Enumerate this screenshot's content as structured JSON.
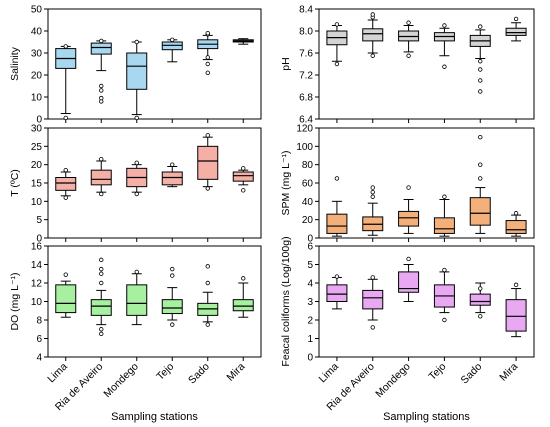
{
  "x_axis": {
    "categories": [
      "Lima",
      "Ria de Aveiro",
      "Mondego",
      "Tejo",
      "Sado",
      "Mira"
    ],
    "title": "Sampling stations"
  },
  "chart_data": [
    {
      "type": "box",
      "ylabel": "Salinity",
      "ylim": [
        0,
        50
      ],
      "yticks": [
        0,
        10,
        20,
        30,
        40,
        50
      ],
      "ytick_labels": [
        "0",
        "10",
        "20",
        "30",
        "40",
        "50"
      ],
      "color": "#a8d8f0",
      "categories": [
        "Lima",
        "Ria de Aveiro",
        "Mondego",
        "Tejo",
        "Sado",
        "Mira"
      ],
      "boxes": [
        {
          "min": 2.5,
          "q1": 23,
          "median": 27.5,
          "q3": 32,
          "max": 33,
          "outliers": [
            0.5,
            33
          ]
        },
        {
          "min": 22,
          "q1": 29.5,
          "median": 32.5,
          "q3": 34.5,
          "max": 35.5,
          "outliers": [
            8,
            9.5,
            13,
            15,
            35.5
          ]
        },
        {
          "min": 2,
          "q1": 13.5,
          "median": 24,
          "q3": 30,
          "max": 35,
          "outliers": [
            0.5,
            35
          ]
        },
        {
          "min": 26,
          "q1": 31.5,
          "median": 33.5,
          "q3": 35,
          "max": 36,
          "outliers": [
            36
          ]
        },
        {
          "min": 27,
          "q1": 32,
          "median": 34,
          "q3": 36,
          "max": 38,
          "outliers": [
            21,
            25,
            28,
            38.5,
            39
          ]
        },
        {
          "min": 34,
          "q1": 35,
          "median": 35.5,
          "q3": 36,
          "max": 36.5,
          "outliers": []
        }
      ]
    },
    {
      "type": "box",
      "ylabel": "pH",
      "ylim": [
        6.4,
        8.4
      ],
      "yticks": [
        6.4,
        6.8,
        7.2,
        7.6,
        8.0,
        8.4
      ],
      "ytick_labels": [
        "6.4",
        "6.8",
        "7.2",
        "7.6",
        "8.0",
        "8.4"
      ],
      "color": "#d4d4d4",
      "categories": [
        "Lima",
        "Ria de Aveiro",
        "Mondego",
        "Tejo",
        "Sado",
        "Mira"
      ],
      "boxes": [
        {
          "min": 7.45,
          "q1": 7.75,
          "median": 7.88,
          "q3": 8.0,
          "max": 8.1,
          "outliers": [
            7.4,
            8.12
          ]
        },
        {
          "min": 7.6,
          "q1": 7.82,
          "median": 7.95,
          "q3": 8.04,
          "max": 8.2,
          "outliers": [
            7.55,
            8.25,
            8.3
          ]
        },
        {
          "min": 7.62,
          "q1": 7.82,
          "median": 7.9,
          "q3": 8.0,
          "max": 8.1,
          "outliers": [
            7.55,
            8.15
          ]
        },
        {
          "min": 7.55,
          "q1": 7.82,
          "median": 7.9,
          "q3": 7.97,
          "max": 8.05,
          "outliers": [
            7.35,
            8.1
          ]
        },
        {
          "min": 7.5,
          "q1": 7.72,
          "median": 7.82,
          "q3": 7.92,
          "max": 8.02,
          "outliers": [
            6.9,
            7.1,
            7.3,
            7.45,
            8.08
          ]
        },
        {
          "min": 7.82,
          "q1": 7.92,
          "median": 7.97,
          "q3": 8.05,
          "max": 8.15,
          "outliers": [
            8.22
          ]
        }
      ]
    },
    {
      "type": "box",
      "ylabel": "T (ºC)",
      "ylim": [
        0,
        30
      ],
      "yticks": [
        0,
        5,
        10,
        15,
        20,
        25,
        30
      ],
      "ytick_labels": [
        "0",
        "5",
        "10",
        "15",
        "20",
        "25",
        "30"
      ],
      "color": "#f4b0a6",
      "categories": [
        "Lima",
        "Ria de Aveiro",
        "Mondego",
        "Tejo",
        "Sado",
        "Mira"
      ],
      "boxes": [
        {
          "min": 11.5,
          "q1": 13,
          "median": 15,
          "q3": 16.5,
          "max": 18,
          "outliers": [
            11,
            18.5
          ]
        },
        {
          "min": 12.5,
          "q1": 14.5,
          "median": 16,
          "q3": 18.5,
          "max": 21,
          "outliers": [
            12,
            21.5
          ]
        },
        {
          "min": 12.5,
          "q1": 14,
          "median": 16.5,
          "q3": 19,
          "max": 20,
          "outliers": [
            12,
            20.5
          ]
        },
        {
          "min": 14,
          "q1": 14.5,
          "median": 16.5,
          "q3": 18,
          "max": 19.5,
          "outliers": [
            20
          ]
        },
        {
          "min": 14,
          "q1": 16,
          "median": 21,
          "q3": 25,
          "max": 27.5,
          "outliers": [
            13.5,
            28
          ]
        },
        {
          "min": 14.5,
          "q1": 15.5,
          "median": 17,
          "q3": 18,
          "max": 18.5,
          "outliers": [
            13,
            19
          ]
        }
      ]
    },
    {
      "type": "box",
      "ylabel": "SPM (mg L⁻¹)",
      "ylim": [
        0,
        120
      ],
      "yticks": [
        0,
        20,
        40,
        60,
        80,
        100,
        120
      ],
      "ytick_labels": [
        "0",
        "20",
        "40",
        "60",
        "80",
        "100",
        "120"
      ],
      "color": "#f4b07a",
      "categories": [
        "Lima",
        "Ria de Aveiro",
        "Mondego",
        "Tejo",
        "Sado",
        "Mira"
      ],
      "boxes": [
        {
          "min": 2,
          "q1": 5,
          "median": 13,
          "q3": 26,
          "max": 40,
          "outliers": [
            65
          ]
        },
        {
          "min": 3,
          "q1": 8,
          "median": 15,
          "q3": 23,
          "max": 38,
          "outliers": [
            45,
            50,
            55
          ]
        },
        {
          "min": 5,
          "q1": 13,
          "median": 22,
          "q3": 29,
          "max": 42,
          "outliers": [
            55
          ]
        },
        {
          "min": 2,
          "q1": 5,
          "median": 10,
          "q3": 22,
          "max": 42,
          "outliers": [
            45
          ]
        },
        {
          "min": 5,
          "q1": 14,
          "median": 27,
          "q3": 44,
          "max": 55,
          "outliers": [
            65,
            80,
            110
          ]
        },
        {
          "min": 2,
          "q1": 5,
          "median": 9,
          "q3": 19,
          "max": 25,
          "outliers": [
            27
          ]
        }
      ]
    },
    {
      "type": "box",
      "ylabel": "DO (mg L⁻¹)",
      "ylim": [
        4,
        16
      ],
      "yticks": [
        4,
        6,
        8,
        10,
        12,
        14,
        16
      ],
      "ytick_labels": [
        "4",
        "6",
        "8",
        "10",
        "12",
        "14",
        "16"
      ],
      "color": "#a6f0a0",
      "categories": [
        "Lima",
        "Ria de Aveiro",
        "Mondego",
        "Tejo",
        "Sado",
        "Mira"
      ],
      "boxes": [
        {
          "min": 8.3,
          "q1": 8.8,
          "median": 9.8,
          "q3": 11.8,
          "max": 12.2,
          "outliers": [
            12.9
          ]
        },
        {
          "min": 7.5,
          "q1": 8.5,
          "median": 9.5,
          "q3": 10.2,
          "max": 11.2,
          "outliers": [
            6.5,
            7,
            12,
            13,
            13.5,
            14.5
          ]
        },
        {
          "min": 7.5,
          "q1": 8.5,
          "median": 9.8,
          "q3": 11.8,
          "max": 13,
          "outliers": [
            13.2
          ]
        },
        {
          "min": 8,
          "q1": 8.7,
          "median": 9.3,
          "q3": 10.2,
          "max": 11.5,
          "outliers": [
            7.5,
            12.8,
            13.5
          ]
        },
        {
          "min": 7.8,
          "q1": 8.5,
          "median": 9.2,
          "q3": 9.8,
          "max": 11,
          "outliers": [
            7.5,
            12,
            13.8
          ]
        },
        {
          "min": 8.3,
          "q1": 9,
          "median": 9.5,
          "q3": 10.2,
          "max": 12,
          "outliers": [
            12.5
          ]
        }
      ]
    },
    {
      "type": "box",
      "ylabel": "Feacal coliforms (Log/100g)",
      "ylim": [
        0,
        6
      ],
      "yticks": [
        0,
        1,
        2,
        3,
        4,
        5,
        6
      ],
      "ytick_labels": [
        "0",
        "1",
        "2",
        "3",
        "4",
        "5",
        "6"
      ],
      "color": "#e8a8f2",
      "categories": [
        "Lima",
        "Ria de Aveiro",
        "Mondego",
        "Tejo",
        "Sado",
        "Mira"
      ],
      "boxes": [
        {
          "min": 2.6,
          "q1": 3,
          "median": 3.4,
          "q3": 3.9,
          "max": 4.3,
          "outliers": [
            4.35
          ]
        },
        {
          "min": 2,
          "q1": 2.6,
          "median": 3.2,
          "q3": 3.6,
          "max": 4.2,
          "outliers": [
            1.6,
            4.3
          ]
        },
        {
          "min": 3,
          "q1": 3.5,
          "median": 3.7,
          "q3": 4.6,
          "max": 5,
          "outliers": [
            5.3
          ]
        },
        {
          "min": 2.4,
          "q1": 2.7,
          "median": 3.3,
          "q3": 3.9,
          "max": 4.6,
          "outliers": [
            2,
            4.7
          ]
        },
        {
          "min": 2.4,
          "q1": 2.8,
          "median": 3,
          "q3": 3.4,
          "max": 4,
          "outliers": [
            2.2,
            3.7
          ]
        },
        {
          "min": 1.1,
          "q1": 1.4,
          "median": 2.2,
          "q3": 3.1,
          "max": 3.7,
          "outliers": [
            3.9
          ]
        }
      ]
    }
  ]
}
